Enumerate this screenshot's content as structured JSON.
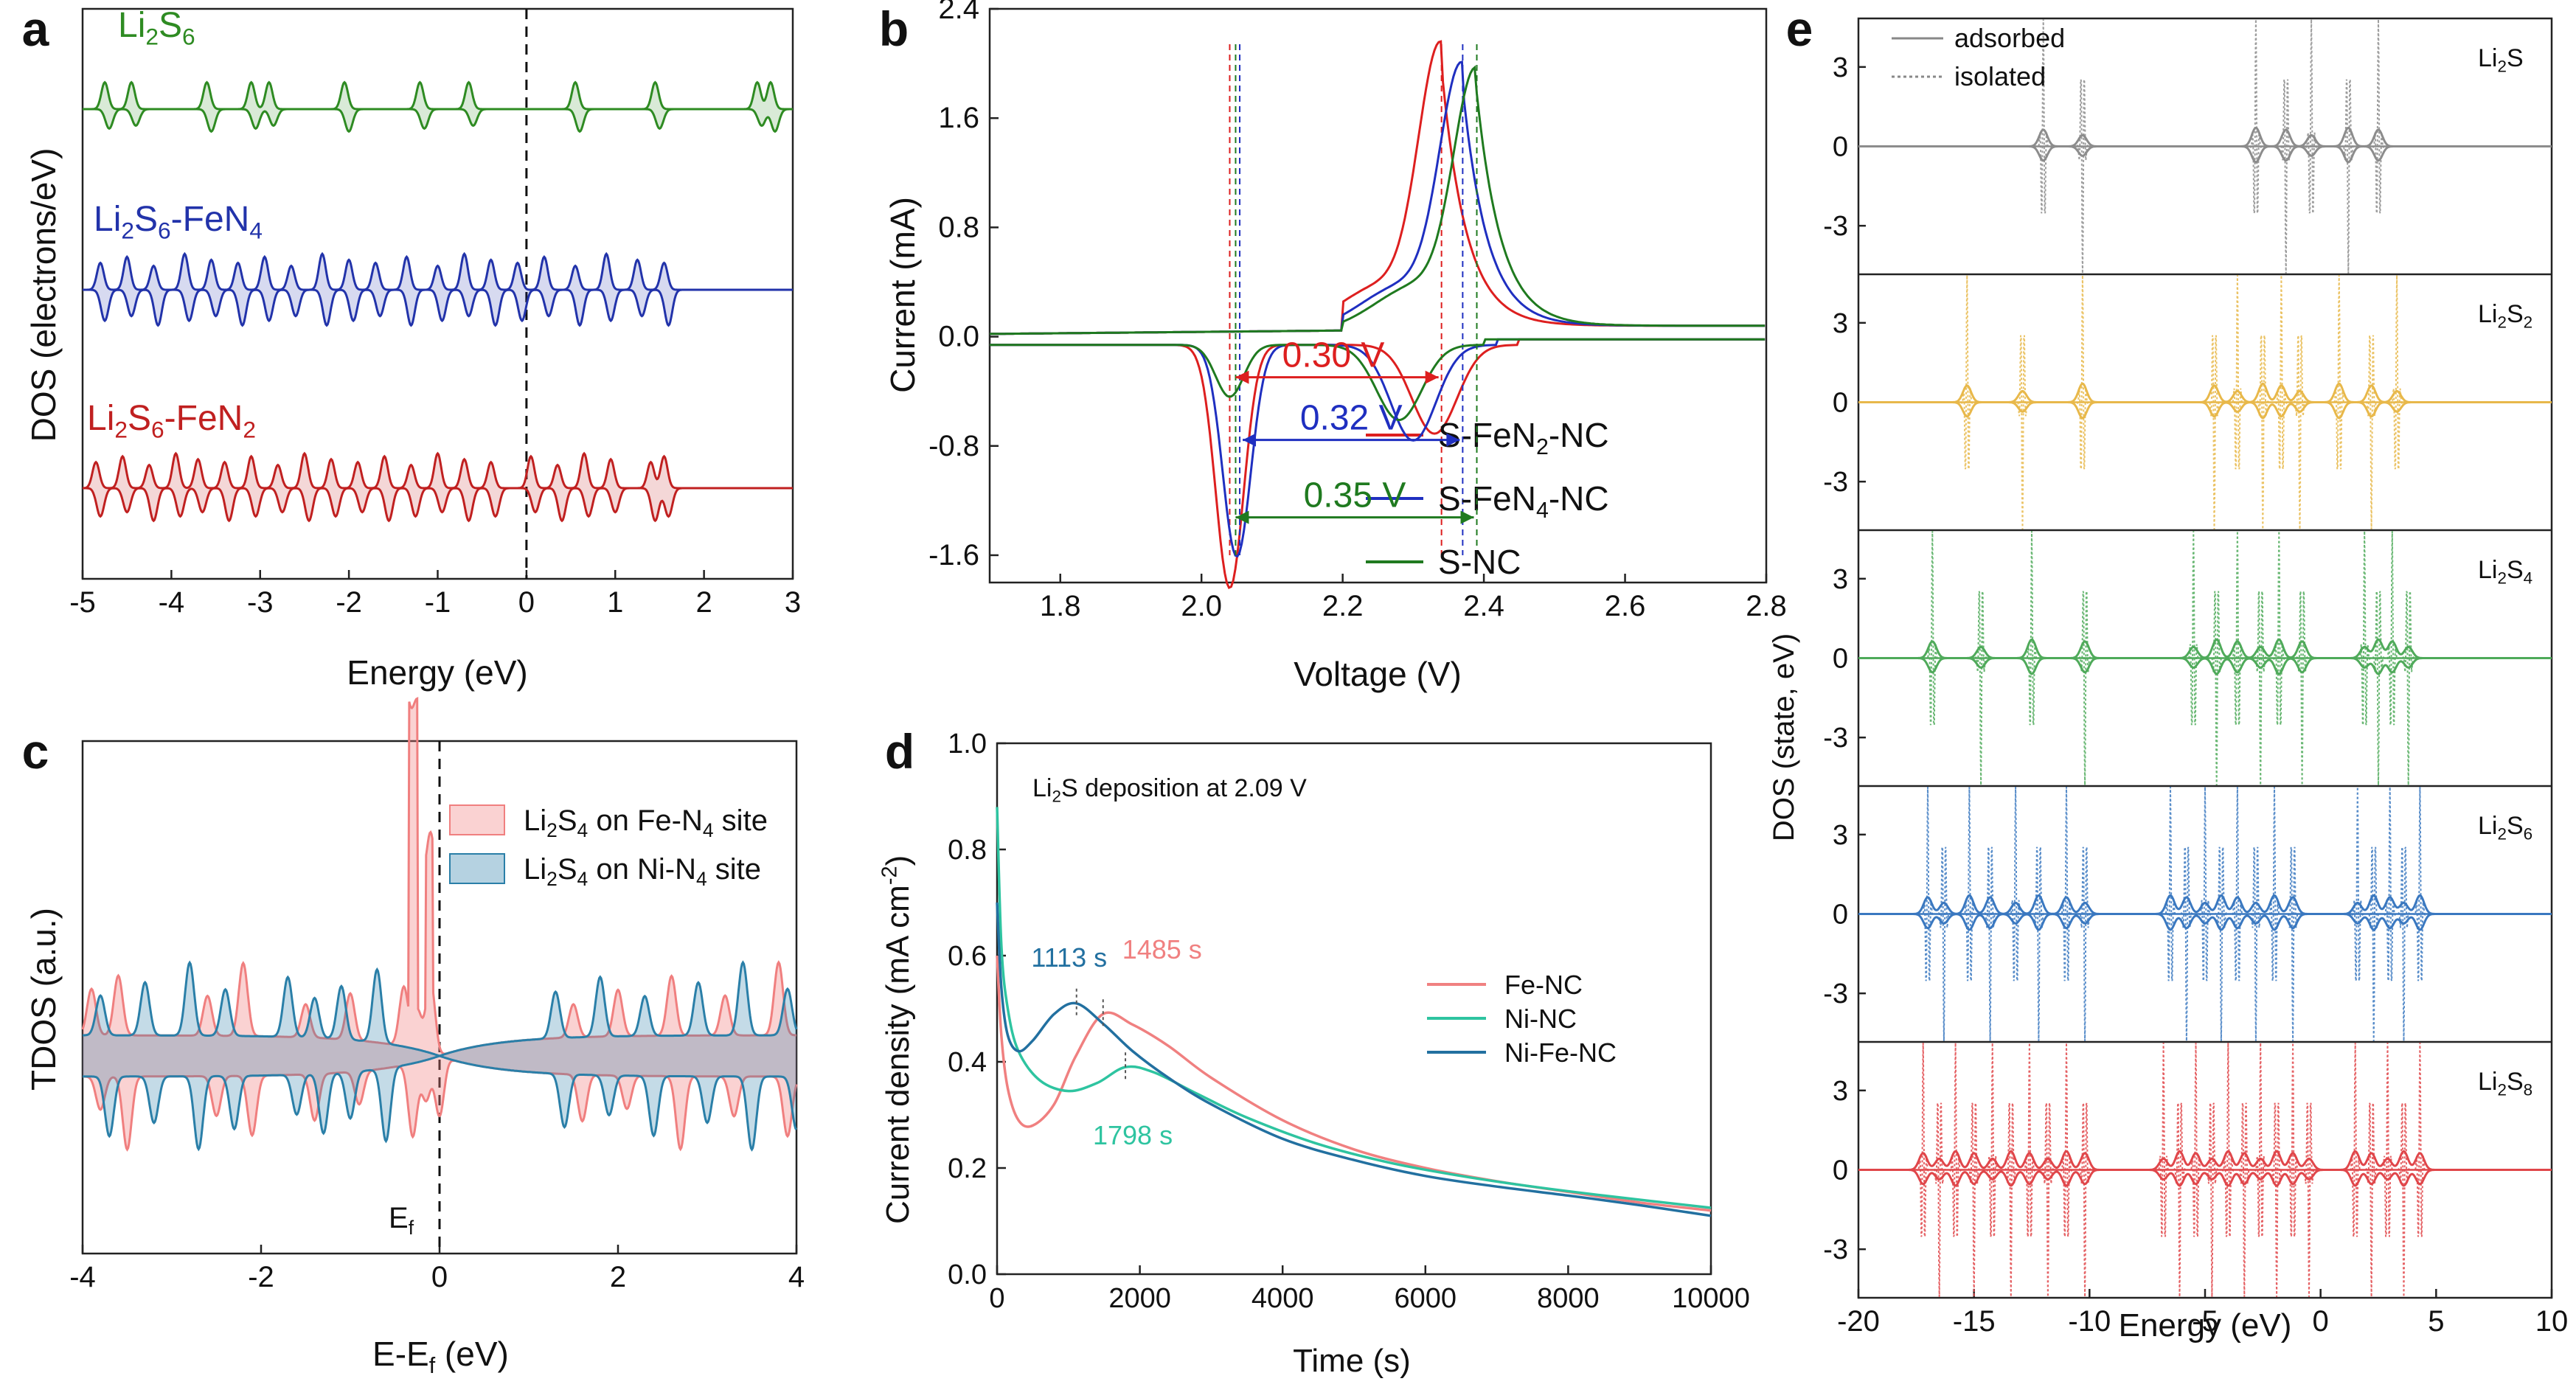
{
  "chart_data": [
    {
      "id": "a",
      "panel_label": "a",
      "type": "line",
      "xlabel": "Energy (eV)",
      "ylabel": "DOS (electrons/eV)",
      "xlim": [
        -5,
        3
      ],
      "xticks": [
        "-5",
        "-4",
        "-3",
        "-2",
        "-1",
        "0",
        "1",
        "2",
        "3"
      ],
      "fermi_level": 0,
      "series": [
        {
          "name": "Li₂S₆",
          "color": "#2e8b22",
          "peaks": [
            -4.75,
            -4.45,
            -3.6,
            -3.1,
            -2.9,
            -2.05,
            -1.2,
            -0.65,
            0.55,
            1.45,
            2.6,
            2.75
          ]
        },
        {
          "name": "Li₂S₆-FeN₄",
          "color": "#2233aa",
          "peaks": [
            -4.8,
            -4.5,
            -4.2,
            -3.85,
            -3.55,
            -3.25,
            -2.95,
            -2.65,
            -2.3,
            -2.0,
            -1.7,
            -1.35,
            -1.0,
            -0.7,
            -0.4,
            -0.1,
            0.2,
            0.55,
            0.9,
            1.25,
            1.55
          ]
        },
        {
          "name": "Li₂S₆-FeN₂",
          "color": "#c02020",
          "peaks": [
            -4.85,
            -4.55,
            -4.25,
            -3.95,
            -3.7,
            -3.4,
            -3.1,
            -2.8,
            -2.5,
            -2.2,
            -1.9,
            -1.6,
            -1.3,
            -1.0,
            -0.7,
            -0.4,
            0.05,
            0.35,
            0.65,
            0.95,
            1.4,
            1.55
          ]
        }
      ]
    },
    {
      "id": "b",
      "panel_label": "b",
      "type": "line",
      "xlabel": "Voltage (V)",
      "ylabel": "Current (mA)",
      "xlim": [
        1.7,
        2.8
      ],
      "ylim": [
        -1.8,
        2.4
      ],
      "xticks": [
        "1.8",
        "2.0",
        "2.2",
        "2.4",
        "2.6",
        "2.8"
      ],
      "yticks": [
        "-1.6",
        "-0.8",
        "0.0",
        "0.8",
        "1.6",
        "2.4"
      ],
      "series": [
        {
          "name": "S-FeN₂-NC",
          "color": "#dd1f1f",
          "ox_peak_v": 2.34,
          "ox_peak_i": 1.97,
          "red_peak_v": 2.04,
          "red_peak_i": -1.78,
          "red2_v": 2.33,
          "red2_i": -0.65
        },
        {
          "name": "S-FeN₄-NC",
          "color": "#1f2fc0",
          "ox_peak_v": 2.37,
          "ox_peak_i": 1.82,
          "red_peak_v": 2.05,
          "red_peak_i": -1.55,
          "red2_v": 2.3,
          "red2_i": -0.7
        },
        {
          "name": "S-NC",
          "color": "#1f7a1f",
          "ox_peak_v": 2.39,
          "ox_peak_i": 1.78,
          "red_peak_v": 2.04,
          "red_peak_i": -0.38,
          "red2_v": 2.28,
          "red2_i": -0.55
        }
      ],
      "annotations": [
        {
          "text": "0.30 V",
          "color": "#dd1f1f"
        },
        {
          "text": "0.32 V",
          "color": "#1f2fc0"
        },
        {
          "text": "0.35 V",
          "color": "#1f7a1f"
        }
      ]
    },
    {
      "id": "c",
      "panel_label": "c",
      "type": "area",
      "xlabel": "E-E_f (eV)",
      "ylabel": "TDOS (a.u.)",
      "xlim": [
        -4,
        4
      ],
      "xticks": [
        "-4",
        "-2",
        "0",
        "2",
        "4"
      ],
      "annotation": "E_f",
      "series": [
        {
          "name": "Li₂S₄ on Fe-N₄ site",
          "color": "#f07f7f"
        },
        {
          "name": "Li₂S₄ on Ni-N₄ site",
          "color": "#2a7fa8"
        }
      ]
    },
    {
      "id": "d",
      "panel_label": "d",
      "type": "line",
      "title": "Li₂S deposition at 2.09 V",
      "xlabel": "Time (s)",
      "ylabel": "Current density (mA cm⁻²)",
      "xlim": [
        0,
        10000
      ],
      "ylim": [
        0.0,
        1.0
      ],
      "xticks": [
        "0",
        "2000",
        "4000",
        "6000",
        "8000",
        "10000"
      ],
      "yticks": [
        "0.0",
        "0.2",
        "0.4",
        "0.6",
        "0.8",
        "1.0"
      ],
      "series": [
        {
          "name": "Fe-NC",
          "color": "#f08080",
          "x": [
            0,
            60,
            150,
            300,
            500,
            800,
            1100,
            1485,
            1900,
            2400,
            3000,
            4000,
            5000,
            6000,
            7000,
            8000,
            9000,
            10000
          ],
          "y": [
            0.6,
            0.45,
            0.35,
            0.29,
            0.28,
            0.32,
            0.41,
            0.49,
            0.47,
            0.43,
            0.37,
            0.29,
            0.235,
            0.2,
            0.175,
            0.155,
            0.135,
            0.12
          ]
        },
        {
          "name": "Ni-NC",
          "color": "#2ec4a0",
          "x": [
            0,
            60,
            150,
            300,
            600,
            1000,
            1400,
            1798,
            2200,
            2800,
            3500,
            4500,
            5500,
            6500,
            7500,
            8500,
            10000
          ],
          "y": [
            0.88,
            0.62,
            0.5,
            0.42,
            0.365,
            0.345,
            0.36,
            0.39,
            0.38,
            0.34,
            0.295,
            0.245,
            0.21,
            0.185,
            0.165,
            0.148,
            0.125
          ]
        },
        {
          "name": "Ni-Fe-NC",
          "color": "#2270a0",
          "x": [
            0,
            60,
            150,
            300,
            500,
            800,
            1113,
            1500,
            1900,
            2400,
            3000,
            4000,
            5000,
            6000,
            7000,
            8000,
            9000,
            10000
          ],
          "y": [
            0.7,
            0.54,
            0.45,
            0.42,
            0.44,
            0.49,
            0.51,
            0.47,
            0.42,
            0.37,
            0.32,
            0.255,
            0.215,
            0.185,
            0.165,
            0.148,
            0.13,
            0.11
          ]
        }
      ],
      "annotations": [
        {
          "text": "1113 s",
          "color": "#2270a0"
        },
        {
          "text": "1485 s",
          "color": "#f08080"
        },
        {
          "text": "1798 s",
          "color": "#2ec4a0"
        }
      ]
    },
    {
      "id": "e",
      "panel_label": "e",
      "type": "line",
      "xlabel": "Energy (eV)",
      "ylabel": "DOS (state, eV)",
      "xlim": [
        -20,
        10
      ],
      "xticks": [
        "-20",
        "-15",
        "-10",
        "-5",
        "0",
        "5",
        "10"
      ],
      "yticks": [
        "3",
        "0",
        "-3"
      ],
      "legend": [
        {
          "name": "adsorbed",
          "style": "solid"
        },
        {
          "name": "isolated",
          "style": "dotted"
        }
      ],
      "subpanels": [
        {
          "name": "Li₂S",
          "color": "#8c8c8c",
          "peaks": [
            -12,
            -10.3,
            -2.8,
            -1.5,
            -0.4,
            1.2,
            2.5
          ]
        },
        {
          "name": "Li₂S₂",
          "color": "#e8b84a",
          "peaks": [
            -15.3,
            -12.9,
            -10.3,
            -4.6,
            -3.6,
            -2.5,
            -1.7,
            -0.9,
            0.8,
            2.2,
            3.3
          ]
        },
        {
          "name": "Li₂S₄",
          "color": "#4faa5a",
          "peaks": [
            -16.8,
            -14.7,
            -12.5,
            -10.2,
            -5.5,
            -4.5,
            -3.6,
            -2.6,
            -1.8,
            -0.8,
            1.9,
            2.5,
            3.1,
            3.8
          ]
        },
        {
          "name": "Li₂S₆",
          "color": "#3a78c0",
          "peaks": [
            -17,
            -16.3,
            -15.2,
            -14.3,
            -13.2,
            -12.2,
            -11,
            -10.2,
            -6.5,
            -5.8,
            -5,
            -4.3,
            -3.6,
            -2.8,
            -2,
            -1.2,
            1.6,
            2.3,
            3,
            3.6,
            4.3
          ]
        },
        {
          "name": "Li₂S₈",
          "color": "#e0464a",
          "peaks": [
            -17.2,
            -16.5,
            -15.8,
            -15,
            -14.2,
            -13.4,
            -12.6,
            -11.8,
            -11,
            -10.2,
            -6.8,
            -6.1,
            -5.4,
            -4.7,
            -4,
            -3.3,
            -2.6,
            -1.9,
            -1.2,
            -0.5,
            1.5,
            2.2,
            2.9,
            3.6,
            4.3
          ]
        }
      ]
    }
  ]
}
